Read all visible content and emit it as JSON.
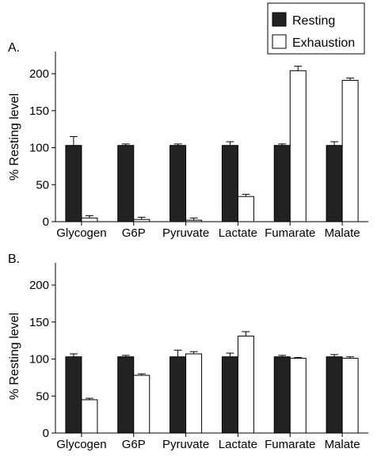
{
  "legend": {
    "items": [
      {
        "label": "Resting",
        "swatch": "#222222"
      },
      {
        "label": "Exhaustion",
        "swatch": "#ffffff"
      }
    ]
  },
  "chart_data": [
    {
      "type": "bar",
      "panel_label": "A.",
      "categories": [
        "Glycogen",
        "G6P",
        "Pyruvate",
        "Lactate",
        "Fumarate",
        "Malate"
      ],
      "ylabel": "% Resting level",
      "ylim": [
        0,
        230
      ],
      "yticks": [
        0,
        50,
        100,
        150,
        200
      ],
      "series": [
        {
          "name": "Resting",
          "color": "#222222",
          "values": [
            103,
            103,
            103,
            103,
            103,
            103
          ],
          "errors": [
            12,
            2,
            2,
            5,
            2,
            5
          ]
        },
        {
          "name": "Exhaustion",
          "color": "#ffffff",
          "values": [
            5,
            3,
            2,
            34,
            204,
            191
          ],
          "errors": [
            3,
            3,
            3,
            3,
            6,
            3
          ]
        }
      ]
    },
    {
      "type": "bar",
      "panel_label": "B.",
      "categories": [
        "Glycogen",
        "G6P",
        "Pyruvate",
        "Lactate",
        "Fumarate",
        "Malate"
      ],
      "ylabel": "% Resting level",
      "ylim": [
        0,
        230
      ],
      "yticks": [
        0,
        50,
        100,
        150,
        200
      ],
      "series": [
        {
          "name": "Resting",
          "color": "#222222",
          "values": [
            103,
            103,
            103,
            103,
            103,
            103
          ],
          "errors": [
            4,
            2,
            9,
            5,
            2,
            3
          ]
        },
        {
          "name": "Exhaustion",
          "color": "#ffffff",
          "values": [
            45,
            78,
            107,
            131,
            101,
            101
          ],
          "errors": [
            2,
            2,
            3,
            6,
            1,
            2
          ]
        }
      ]
    }
  ]
}
